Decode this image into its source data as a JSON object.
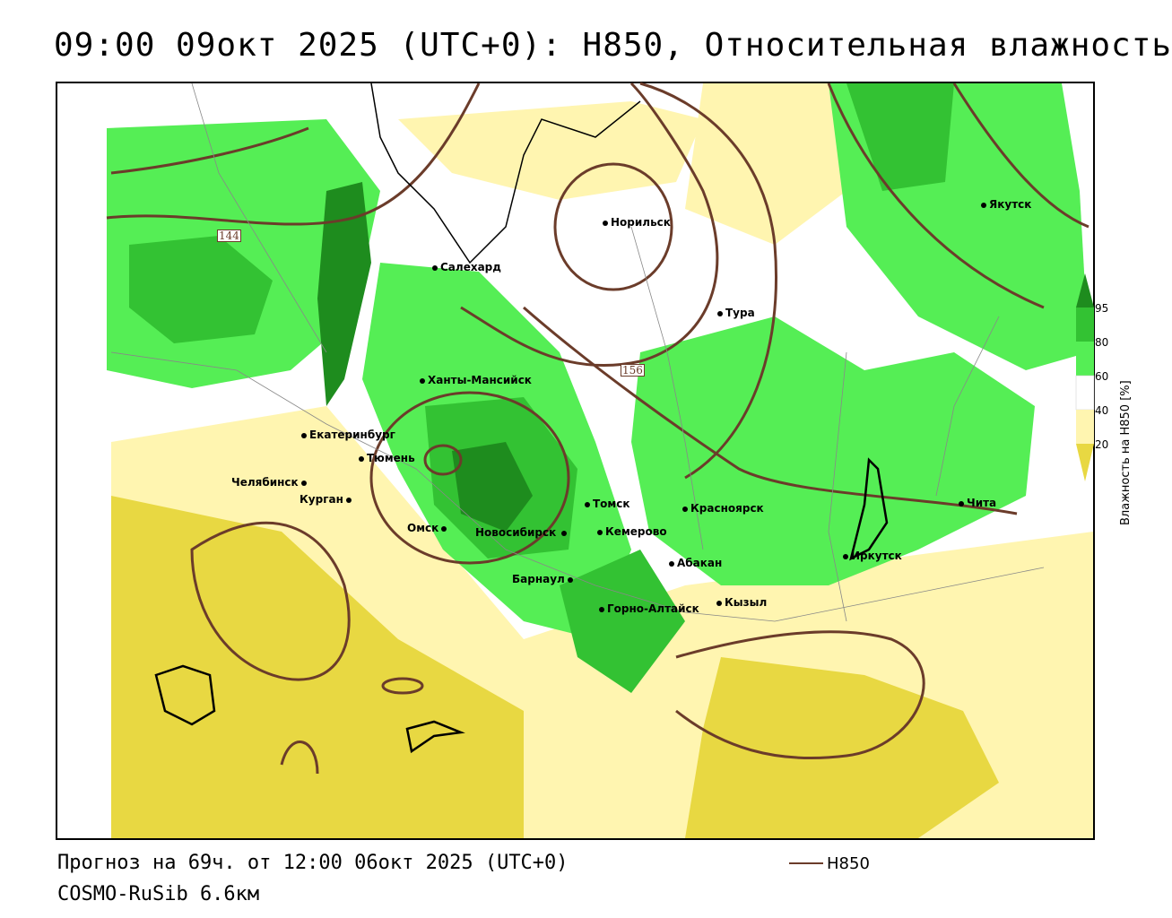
{
  "title": "09:00 09окт 2025 (UTC+0): H850, Относительная влажность",
  "footer": {
    "forecast": "Прогноз на 69ч. от 12:00 06окт 2025 (UTC+0)",
    "model": "COSMO-RuSib 6.6км",
    "contour_legend": "H850"
  },
  "colorbar": {
    "title": "Влажность на H850 [%]",
    "ticks": [
      "95",
      "80",
      "60",
      "40",
      "20"
    ],
    "colors": {
      "c95_plus": "#1e8c1e",
      "c80_95": "#33c233",
      "c60_80": "#55ee55",
      "c40_60": "#ffffff",
      "c20_40": "#fff5b0",
      "c0_20": "#e8d842",
      "contour": "#6b3c2a"
    }
  },
  "contour_labels": {
    "lbl_144": "144",
    "lbl_156": "156"
  },
  "cities": {
    "norilsk": "Норильск",
    "yakutsk": "Якутск",
    "salekhard": "Салехард",
    "tura": "Тура",
    "khanty": "Ханты-Мансийск",
    "ekaterinburg": "Екатеринбург",
    "tyumen": "Тюмень",
    "chelyabinsk": "Челябинск",
    "kurgan": "Курган",
    "omsk": "Омск",
    "novosibirsk": "Новосибирск",
    "tomsk": "Томск",
    "kemerovo": "Кемерово",
    "krasnoyarsk": "Красноярск",
    "abakan": "Абакан",
    "barnaul": "Барнаул",
    "gorno": "Горно-Алтайск",
    "kyzyl": "Кызыл",
    "irkutsk": "Иркутск",
    "chita": "Чита"
  }
}
